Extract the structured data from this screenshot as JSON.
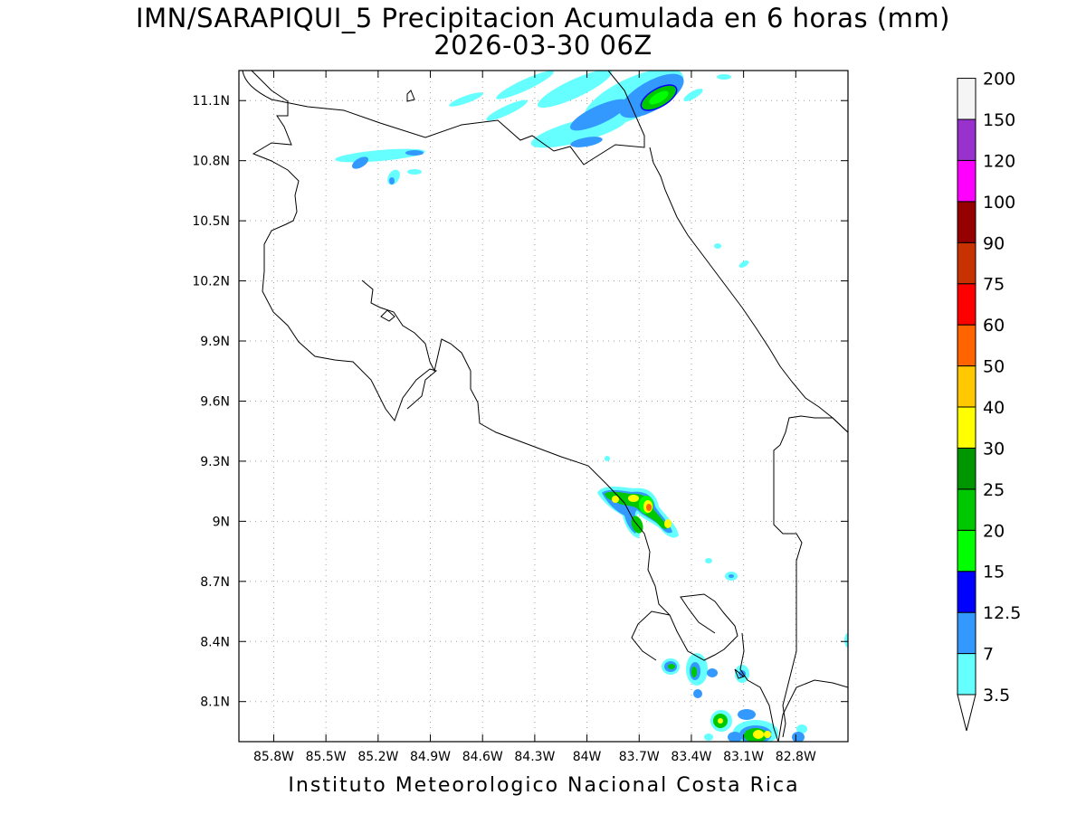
{
  "title": {
    "line1": "IMN/SARAPIQUI_5 Precipitacion Acumulada en 6 horas (mm)",
    "line2": "2026-03-30 06Z"
  },
  "footer": "Instituto Meteorologico Nacional Costa Rica",
  "map": {
    "lon_range": [
      -86.0,
      -82.5
    ],
    "lat_range": [
      7.9,
      11.25
    ],
    "lon_ticks": [
      "85.8W",
      "85.5W",
      "85.2W",
      "84.9W",
      "84.6W",
      "84.3W",
      "84W",
      "83.7W",
      "83.4W",
      "83.1W",
      "82.8W"
    ],
    "lon_tick_values": [
      -85.8,
      -85.5,
      -85.2,
      -84.9,
      -84.6,
      -84.3,
      -84.0,
      -83.7,
      -83.4,
      -83.1,
      -82.8
    ],
    "lat_ticks": [
      "11.1N",
      "10.8N",
      "10.5N",
      "10.2N",
      "9.9N",
      "9.6N",
      "9.3N",
      "9N",
      "8.7N",
      "8.4N",
      "8.1N"
    ],
    "lat_tick_values": [
      11.1,
      10.8,
      10.5,
      10.2,
      9.9,
      9.6,
      9.3,
      9.0,
      8.7,
      8.4,
      8.1
    ],
    "grid": true
  },
  "colorbar": {
    "levels": [
      "3.5",
      "7",
      "12.5",
      "15",
      "20",
      "25",
      "30",
      "40",
      "50",
      "60",
      "75",
      "90",
      "100",
      "120",
      "150",
      "200"
    ],
    "colors": [
      "#66ffff",
      "#3399ff",
      "#0000ff",
      "#00ff00",
      "#00c800",
      "#009600",
      "#ffff00",
      "#ffc800",
      "#ff6400",
      "#ff0000",
      "#c83200",
      "#960000",
      "#ff00ff",
      "#9932cc",
      "#f5f5f5",
      "#aaaaaa"
    ],
    "under_color": "#ffffff"
  }
}
